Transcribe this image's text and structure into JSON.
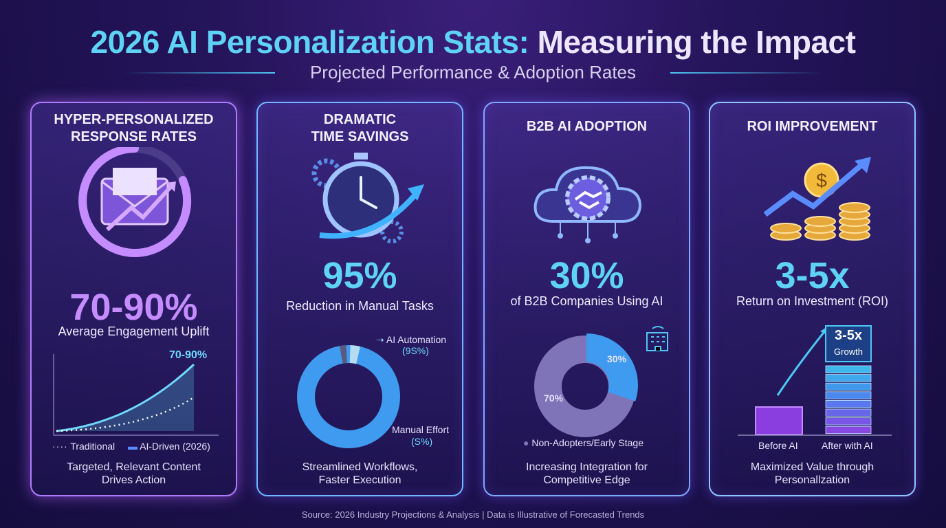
{
  "header": {
    "title_part1": "2026 AI Personalization Stats:",
    "title_part2": "Measuring the Impact",
    "subtitle": "Projected Performance & Adoption Rates"
  },
  "cards": [
    {
      "heading": [
        "HYPER-PERSONALIZED",
        "RESPONSE RATES"
      ],
      "icon": "envelope-growth-icon",
      "stat": "70-90%",
      "stat_label": "Average Engagement Uplift",
      "chart": {
        "type": "line",
        "peak_label": "70-90%",
        "legend": [
          "Traditional",
          "AI-Driven (2026)"
        ]
      },
      "caption": [
        "Targeted, Relevant Content",
        "Drives Action"
      ]
    },
    {
      "heading": [
        "DRAMATIC",
        "TIME SAVINGS"
      ],
      "icon": "stopwatch-gear-icon",
      "stat": "95%",
      "stat_label": "Reduction in Manual Tasks",
      "chart": {
        "type": "pie",
        "labels": [
          "AI Automation",
          "Manual Effort"
        ],
        "value_labels": [
          "(9S%)",
          "(S%)"
        ],
        "values": [
          95,
          5
        ]
      },
      "caption": [
        "Streamlined Workflows,",
        "Faster Execution"
      ]
    },
    {
      "heading": [
        "B2B AI ADOPTION"
      ],
      "icon": "cloud-handshake-icon",
      "stat": "30%",
      "stat_label": "of B2B Companies Using AI",
      "chart": {
        "type": "pie",
        "values": [
          30,
          70
        ],
        "value_labels": [
          "30%",
          "70%"
        ],
        "legend": "Non-Adopters/Early Stage"
      },
      "caption": [
        "Increasing Integration for",
        "Competitive Edge"
      ]
    },
    {
      "heading": [
        "ROI IMPROVEMENT"
      ],
      "icon": "coins-growth-icon",
      "stat": "3-5x",
      "stat_label": "Return on Investment (ROI)",
      "chart": {
        "type": "bar",
        "categories": [
          "Before AI",
          "After with AI"
        ],
        "badge": [
          "3-5x",
          "Growth"
        ]
      },
      "caption": [
        "Maximized Value through",
        "Personallzation"
      ]
    }
  ],
  "colors": {
    "cyan": "#5fd3f5",
    "purple": "#b07cff",
    "blue": "#3f7dff",
    "muted": "#7f74b8"
  },
  "footer": {
    "source": "Source: 2026 Industry Projections & Analysis | Data is Illustrative of Forecasted Trends"
  }
}
